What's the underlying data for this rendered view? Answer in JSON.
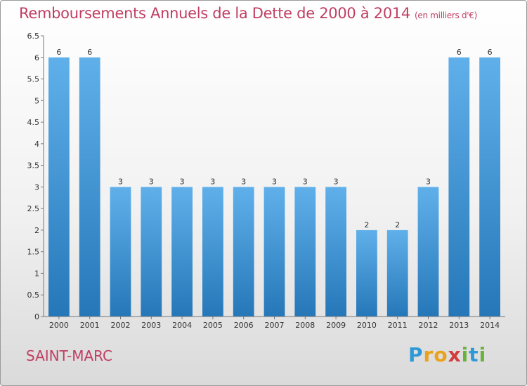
{
  "header": {
    "title": "Remboursements Annuels de la Dette de 2000 à 2014",
    "unit": "(en milliers d'€)"
  },
  "footer": {
    "location": "SAINT-MARC",
    "brand": "Proxiti"
  },
  "colors": {
    "title": "#c03e62",
    "bar_top": "#5fb0ea",
    "bar_bottom": "#2677b8"
  },
  "chart_data": {
    "type": "bar",
    "title": "Remboursements Annuels de la Dette de 2000 à 2014",
    "categories": [
      "2000",
      "2001",
      "2002",
      "2003",
      "2004",
      "2005",
      "2006",
      "2007",
      "2008",
      "2009",
      "2010",
      "2011",
      "2012",
      "2013",
      "2014"
    ],
    "values": [
      6,
      6,
      3,
      3,
      3,
      3,
      3,
      3,
      3,
      3,
      2,
      2,
      3,
      6,
      6
    ],
    "data_labels": [
      "6",
      "6",
      "3",
      "3",
      "3",
      "3",
      "3",
      "3",
      "3",
      "3",
      "2",
      "2",
      "3",
      "6",
      "6"
    ],
    "y_ticks": [
      "0",
      "0.5",
      "1",
      "1.5",
      "2",
      "2.5",
      "3",
      "3.5",
      "4",
      "4.5",
      "5",
      "5.5",
      "6",
      "6.5"
    ],
    "ylim": [
      0,
      6.5
    ],
    "grid": false,
    "legend": "none"
  }
}
